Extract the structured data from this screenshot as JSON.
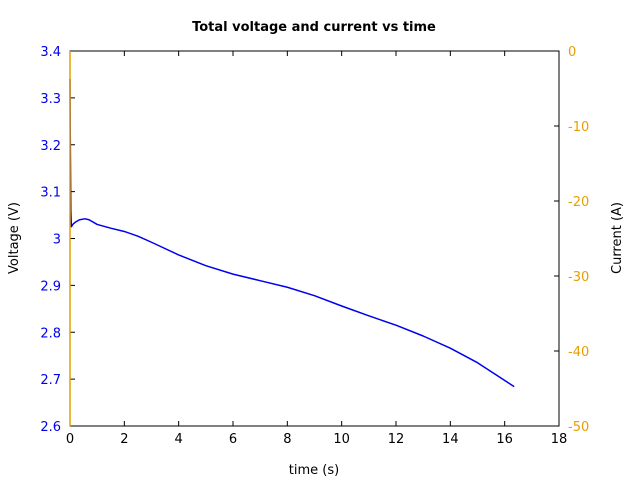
{
  "chart_data": {
    "type": "line",
    "title": "Total voltage and current vs time",
    "xlabel": "time (s)",
    "ylabel_left": "Voltage (V)",
    "ylabel_right": "Current (A)",
    "xlim": [
      0,
      18
    ],
    "ylim_left": [
      2.6,
      3.4
    ],
    "ylim_right": [
      -50,
      0
    ],
    "x_ticks": [
      "0",
      "2",
      "4",
      "6",
      "8",
      "10",
      "12",
      "14",
      "16",
      "18"
    ],
    "y_left_ticks": [
      "2.6",
      "2.7",
      "2.8",
      "2.9",
      "3",
      "3.1",
      "3.2",
      "3.3",
      "3.4"
    ],
    "y_right_ticks": [
      "-50",
      "-40",
      "-30",
      "-20",
      "-10",
      "0"
    ],
    "grid": false,
    "colors": {
      "voltage": "#0000ee",
      "current": "#e69f00",
      "axes": "#000000"
    },
    "series": [
      {
        "axis": "left",
        "color": "#0000ee",
        "x": [
          0.0,
          0.01,
          0.03,
          0.05,
          0.1,
          0.2,
          0.35,
          0.55,
          0.7,
          1.0,
          1.5,
          2.0,
          2.5,
          3.0,
          4.0,
          5.0,
          6.0,
          7.0,
          8.0,
          9.0,
          10.0,
          11.0,
          12.0,
          13.0,
          14.0,
          15.0,
          16.35
        ],
        "y": [
          3.34,
          3.22,
          3.06,
          3.025,
          3.03,
          3.035,
          3.04,
          3.042,
          3.04,
          3.03,
          3.022,
          3.015,
          3.005,
          2.992,
          2.965,
          2.942,
          2.924,
          2.91,
          2.896,
          2.878,
          2.856,
          2.835,
          2.815,
          2.792,
          2.766,
          2.735,
          2.684
        ]
      },
      {
        "axis": "right",
        "color": "#e69f00",
        "x": [
          0.0,
          0.0,
          0.02
        ],
        "y": [
          0.0,
          -50.0,
          -50.0
        ]
      }
    ]
  }
}
